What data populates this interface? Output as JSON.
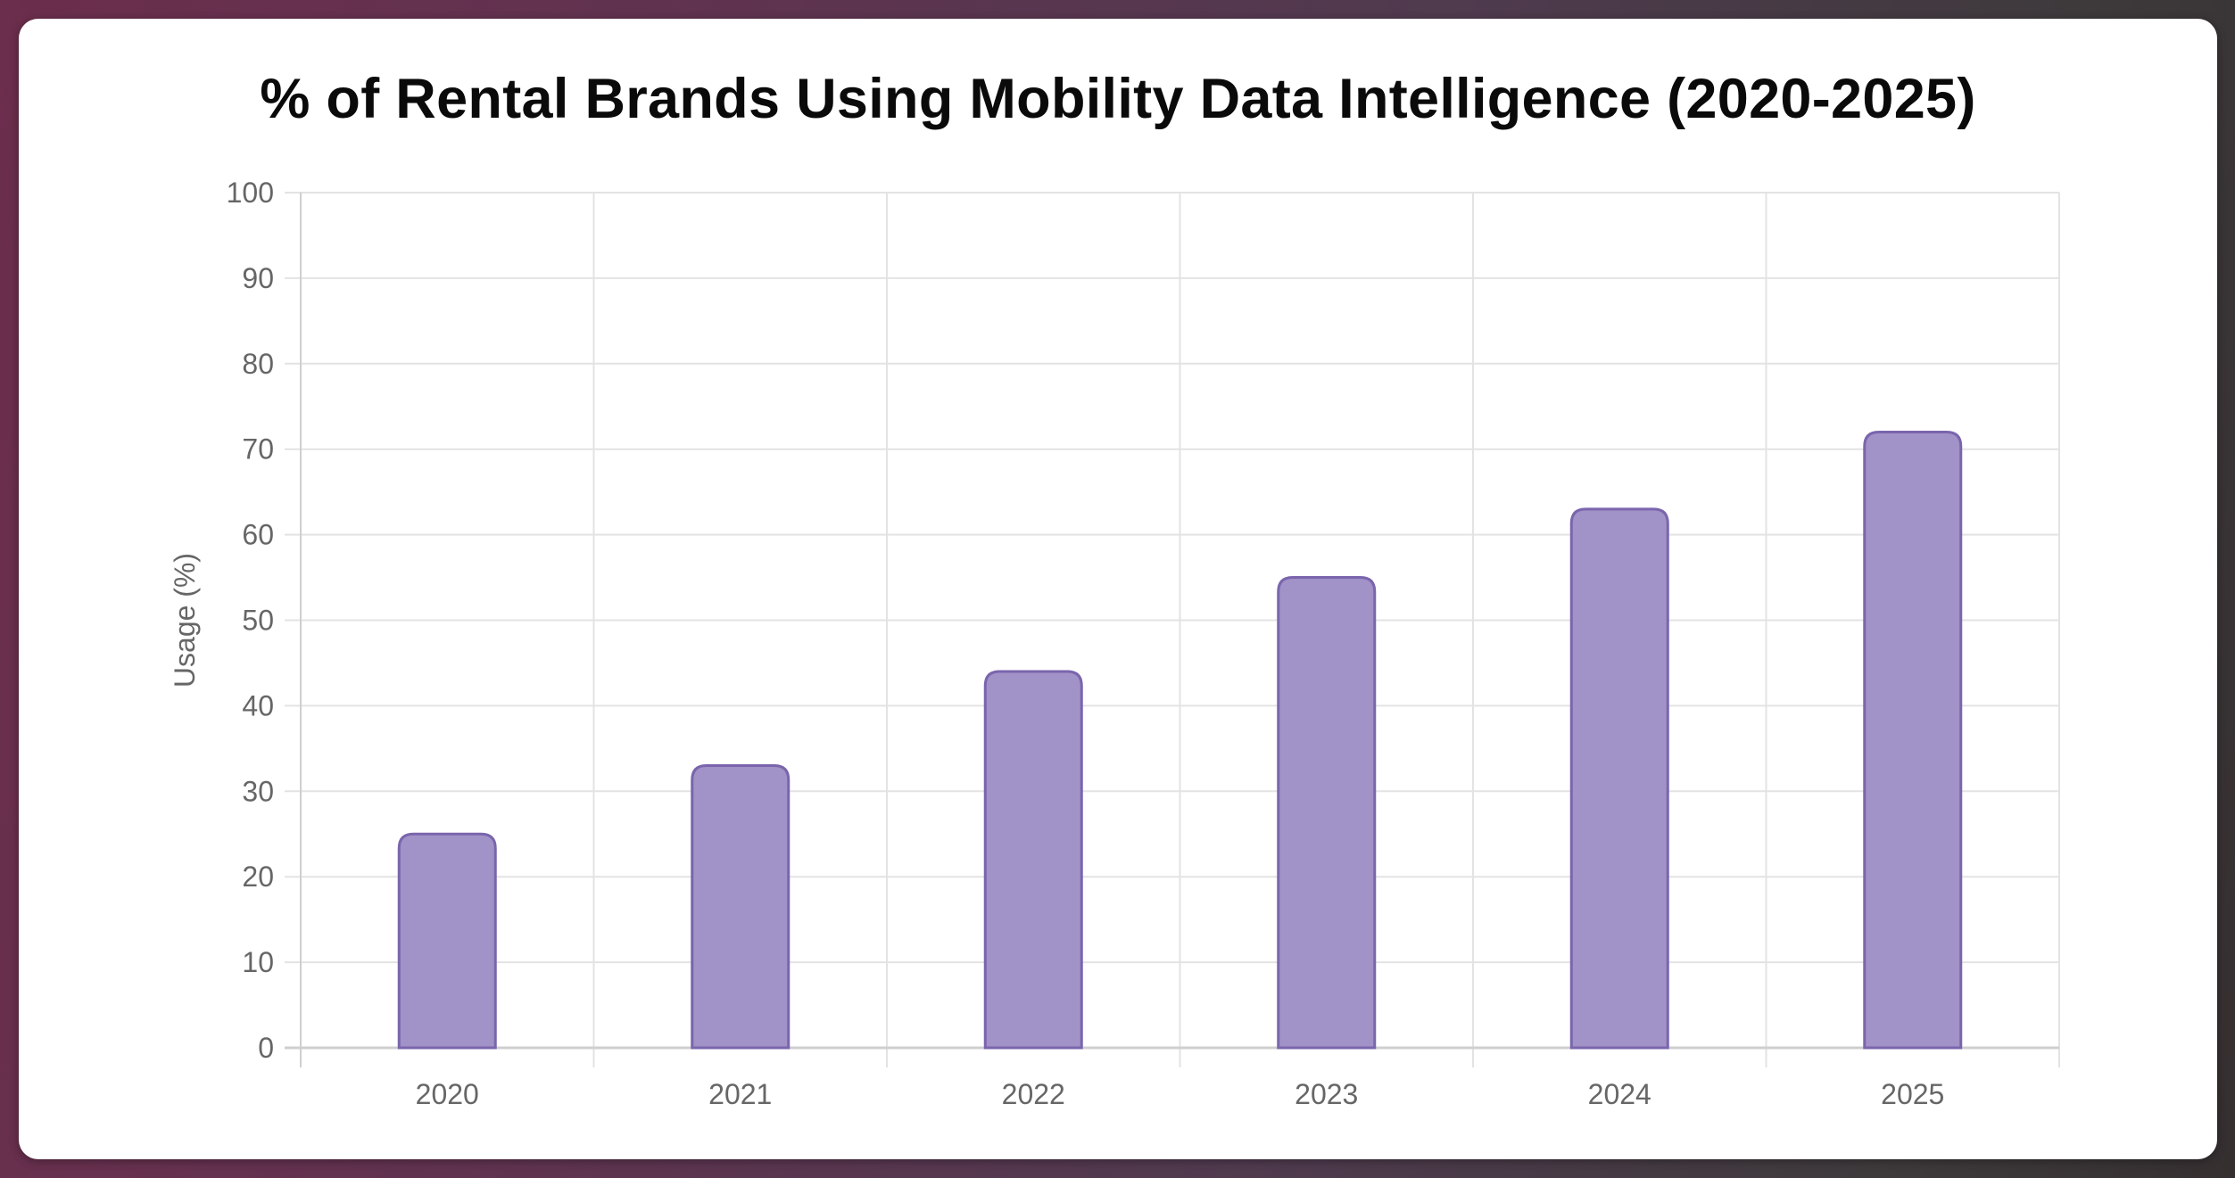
{
  "chart_data": {
    "type": "bar",
    "title": "% of Rental Brands Using Mobility Data Intelligence (2020-2025)",
    "xlabel": "",
    "ylabel": "Usage (%)",
    "categories": [
      "2020",
      "2021",
      "2022",
      "2023",
      "2024",
      "2025"
    ],
    "series": [
      {
        "name": "Usage (%)",
        "values": [
          25,
          33,
          44,
          55,
          63,
          72
        ]
      }
    ],
    "ylim": [
      0,
      100
    ],
    "yticks": [
      "0",
      "10",
      "20",
      "30",
      "40",
      "50",
      "60",
      "70",
      "80",
      "90",
      "100"
    ],
    "grid": true,
    "legend": "none"
  },
  "colors": {
    "bar_fill": "#a192c7",
    "bar_stroke": "#7a65ad",
    "grid": "#e3e3e3",
    "axis": "#cfcfcf",
    "tick_text": "#666666"
  }
}
